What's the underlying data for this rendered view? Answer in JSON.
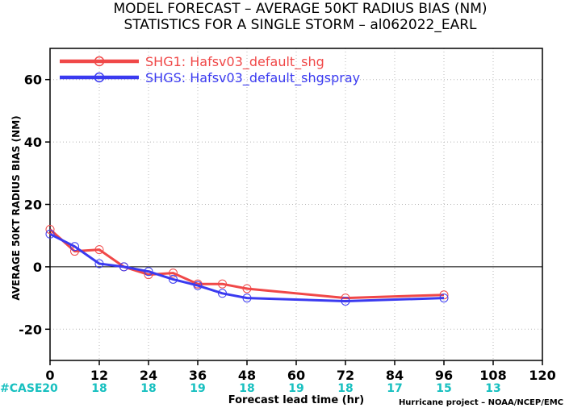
{
  "chart_data": {
    "type": "line",
    "title": "MODEL FORECAST – AVERAGE 50KT RADIUS BIAS (NM)",
    "subtitle": "STATISTICS FOR A SINGLE STORM – al062022_EARL",
    "xlabel": "Forecast lead time (hr)",
    "ylabel": "AVERAGE 50KT RADIUS BIAS (NM)",
    "xlim": [
      0,
      120
    ],
    "ylim": [
      -30,
      70
    ],
    "xticks": [
      0,
      12,
      24,
      36,
      48,
      60,
      72,
      84,
      96,
      108,
      120
    ],
    "yticks": [
      -20,
      0,
      20,
      40,
      60
    ],
    "grid": true,
    "legend_position": "top-left",
    "series": [
      {
        "name": "SHG1: Hafsv03_default_shg",
        "color": "#f04848",
        "x": [
          0,
          6,
          12,
          18,
          24,
          30,
          36,
          42,
          48,
          72,
          96
        ],
        "y": [
          12,
          5,
          5.5,
          0,
          -2.5,
          -2,
          -5.5,
          -5.5,
          -7,
          -10,
          -9
        ]
      },
      {
        "name": "SHGS: Hafsv03_default_shgspray",
        "color": "#3a3af0",
        "x": [
          0,
          6,
          12,
          18,
          24,
          30,
          36,
          42,
          48,
          72,
          96
        ],
        "y": [
          10.5,
          6.5,
          1,
          0,
          -1.5,
          -4,
          -6,
          -8.5,
          -10,
          -11,
          -10
        ]
      }
    ],
    "case_label": "#CASE",
    "cases": [
      {
        "x": 0,
        "label": "20"
      },
      {
        "x": 12,
        "label": "18"
      },
      {
        "x": 24,
        "label": "18"
      },
      {
        "x": 36,
        "label": "19"
      },
      {
        "x": 48,
        "label": "18"
      },
      {
        "x": 60,
        "label": "19"
      },
      {
        "x": 72,
        "label": "18"
      },
      {
        "x": 84,
        "label": "17"
      },
      {
        "x": 96,
        "label": "15"
      },
      {
        "x": 108,
        "label": "13"
      }
    ],
    "credit": "Hurricane project – NOAA/NCEP/EMC"
  }
}
